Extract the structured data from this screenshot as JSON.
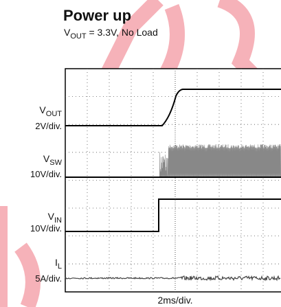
{
  "header": {
    "title": "Power up",
    "subtitle": {
      "v": "V",
      "sub": "OUT",
      "rest": " = 3.3V, No Load"
    }
  },
  "channels": [
    {
      "name": "V",
      "sub": "OUT",
      "scale": "2V/div."
    },
    {
      "name": "V",
      "sub": "SW",
      "scale": "10V/div."
    },
    {
      "name": "V",
      "sub": "IN",
      "scale": "10V/div."
    },
    {
      "name": "I",
      "sub": "L",
      "scale": "5A/div."
    }
  ],
  "timebase": "2ms/div."
}
